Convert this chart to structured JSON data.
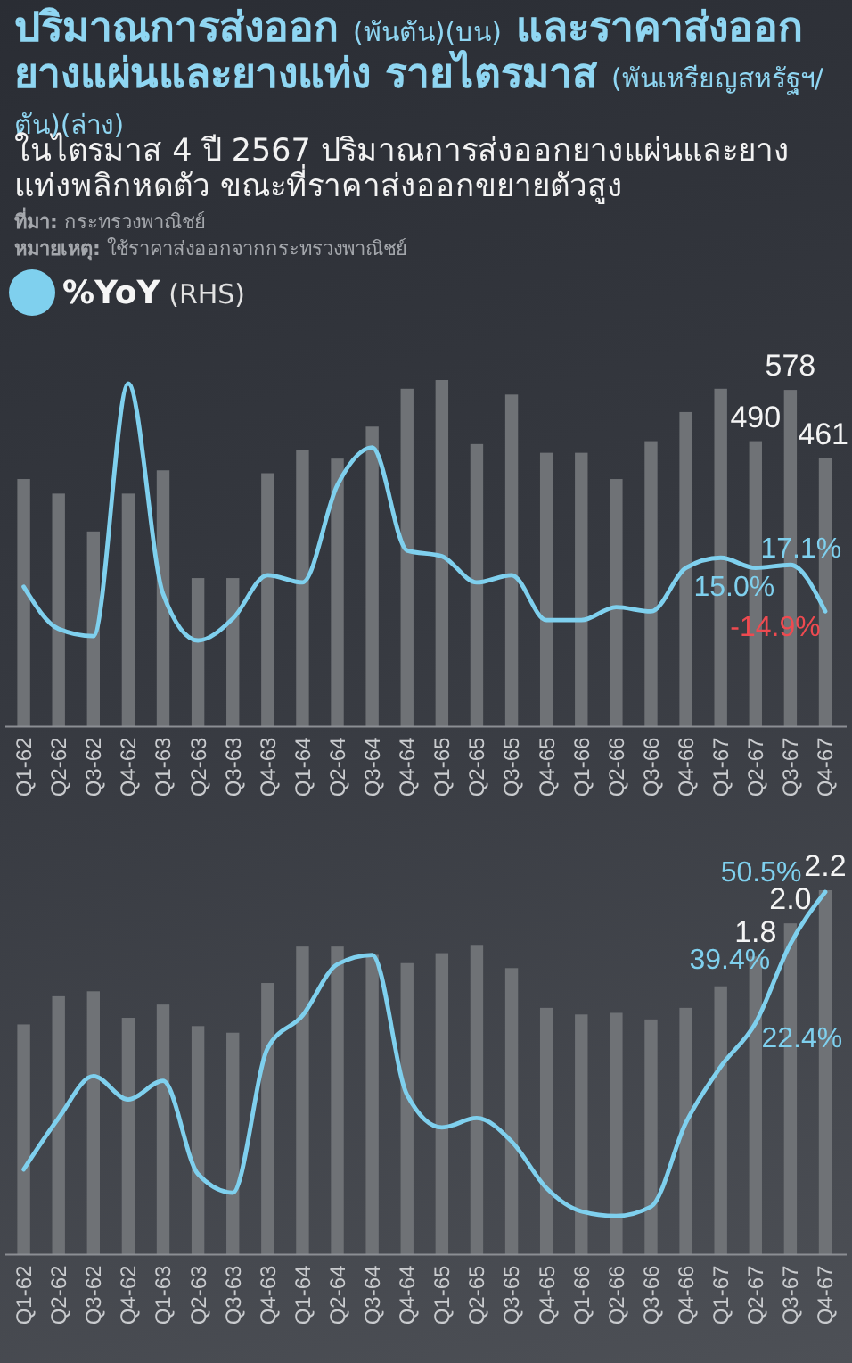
{
  "chart_data": [
    {
      "type": "bar",
      "title": "ปริมาณการส่งออก (พันตัน)(บน) และราคาส่งออกยางแผ่นและยางแท่ง รายไตรมาส (พันเหรียญสหรัฐฯ/ตัน)(ล่าง)",
      "subtitle": "ในไตรมาส 4 ปี 2567 ปริมาณการส่งออกยางแผ่นและยางแท่งพลิกหดตัว ขณะที่ราคาส่งออกขยายตัวสูง",
      "annotations": [
        "ที่มา: กระทรวงพาณิชย์",
        "หมายเหตุ: ใช้ราคาส่งออกจากกระทรวงพาณิชย์"
      ],
      "categories": [
        "Q1-62",
        "Q2-62",
        "Q3-62",
        "Q4-62",
        "Q1-63",
        "Q2-63",
        "Q3-63",
        "Q4-63",
        "Q1-64",
        "Q2-64",
        "Q3-64",
        "Q4-64",
        "Q1-65",
        "Q2-65",
        "Q3-65",
        "Q4-65",
        "Q1-66",
        "Q2-66",
        "Q3-66",
        "Q4-66",
        "Q1-67",
        "Q2-67",
        "Q3-67",
        "Q4-67"
      ],
      "series": [
        {
          "color": "#6f7276",
          "values": [
            425,
            400,
            335,
            400,
            440,
            255,
            255,
            435,
            475,
            460,
            515,
            580,
            595,
            485,
            570,
            470,
            470,
            425,
            490,
            540,
            580,
            490,
            578,
            461
          ],
          "value_labels": [
            null,
            null,
            null,
            null,
            null,
            null,
            null,
            null,
            null,
            null,
            null,
            null,
            null,
            null,
            null,
            null,
            null,
            null,
            null,
            null,
            null,
            "490",
            "578",
            "461"
          ]
        },
        {
          "type": "line",
          "name": "%YoY (RHS)",
          "color": "#7fd0ee",
          "axis": "y2",
          "values": [
            2,
            -27,
            -32,
            142,
            -3,
            -35,
            -20,
            10,
            5,
            72,
            98,
            27,
            23,
            5,
            10,
            -21,
            -21,
            -12,
            -15,
            15,
            22,
            15.0,
            17.1,
            -14.9
          ],
          "value_labels": [
            null,
            null,
            null,
            null,
            null,
            null,
            null,
            null,
            null,
            null,
            null,
            null,
            null,
            null,
            null,
            null,
            null,
            null,
            null,
            null,
            null,
            "15.0%",
            "17.1%",
            "-14.9%"
          ]
        }
      ],
      "tick_labels": "x",
      "legend": "top left"
    },
    {
      "type": "bar",
      "categories": [
        "Q1-62",
        "Q2-62",
        "Q3-62",
        "Q4-62",
        "Q1-63",
        "Q2-63",
        "Q3-63",
        "Q4-63",
        "Q1-64",
        "Q2-64",
        "Q3-64",
        "Q4-64",
        "Q1-65",
        "Q2-65",
        "Q3-65",
        "Q4-65",
        "Q1-66",
        "Q2-66",
        "Q3-66",
        "Q4-66",
        "Q1-67",
        "Q2-67",
        "Q3-67",
        "Q4-67"
      ],
      "series": [
        {
          "color": "#6f7276",
          "values": [
            1.39,
            1.56,
            1.59,
            1.43,
            1.51,
            1.38,
            1.34,
            1.64,
            1.86,
            1.86,
            1.81,
            1.76,
            1.82,
            1.87,
            1.73,
            1.49,
            1.45,
            1.46,
            1.42,
            1.49,
            1.62,
            1.8,
            2.0,
            2.2
          ],
          "value_labels": [
            null,
            null,
            null,
            null,
            null,
            null,
            null,
            null,
            null,
            null,
            null,
            null,
            null,
            null,
            null,
            null,
            null,
            null,
            null,
            null,
            null,
            "1.8",
            "2.0",
            "2.2"
          ]
        },
        {
          "type": "line",
          "color": "#7fd0ee",
          "axis": "y2",
          "values": [
            -9,
            2,
            11,
            6,
            10,
            -10,
            -14,
            17,
            24,
            35,
            37,
            7,
            0,
            2,
            -3,
            -13,
            -18,
            -19,
            -17,
            1,
            13,
            22.4,
            39.4,
            50.5
          ],
          "value_labels": [
            null,
            null,
            null,
            null,
            null,
            null,
            null,
            null,
            null,
            null,
            null,
            null,
            null,
            null,
            null,
            null,
            null,
            null,
            null,
            null,
            null,
            "22.4%",
            "39.4%",
            "50.5%"
          ]
        }
      ],
      "tick_labels": "x"
    }
  ]
}
